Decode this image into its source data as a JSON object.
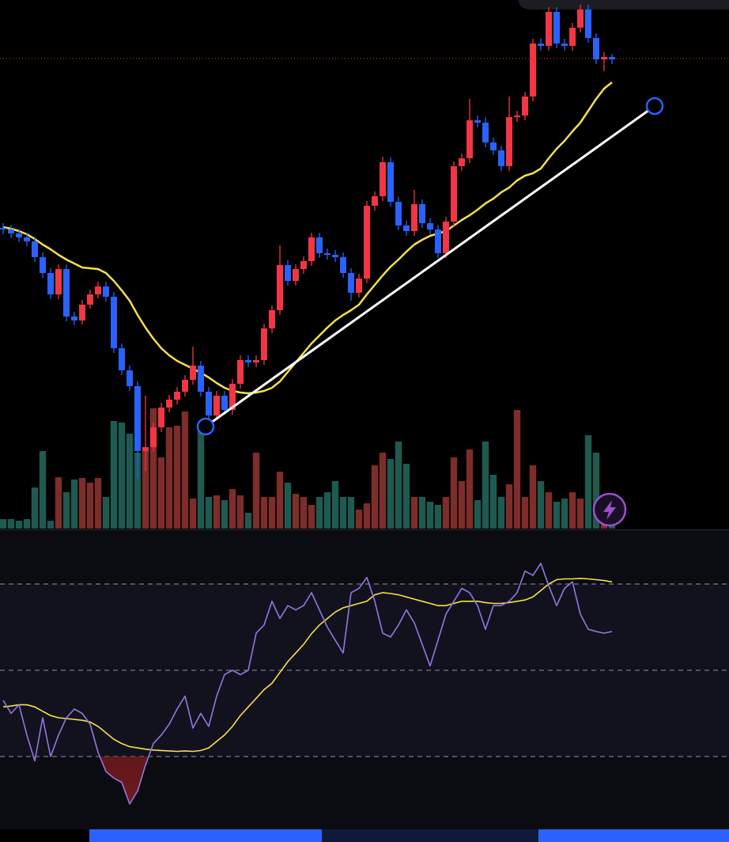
{
  "chart_data": {
    "type": "candlestick",
    "xlim": [
      -0.4,
      91.8
    ],
    "ylim": [
      0,
      700
    ],
    "up_color": "#f23645",
    "down_color": "#2962ff",
    "volume_up_color": "#7d2d2a",
    "volume_down_color": "#1e5a50",
    "open": [
      412,
      410,
      405,
      400,
      395,
      375,
      355,
      328,
      360,
      300,
      295,
      315,
      328,
      338,
      325,
      260,
      232,
      212,
      130,
      135,
      160,
      185,
      195,
      205,
      220,
      238,
      205,
      175,
      200,
      182,
      215,
      245,
      242,
      245,
      285,
      308,
      365,
      345,
      360,
      370,
      400,
      380,
      378,
      375,
      355,
      330,
      348,
      440,
      452,
      495,
      445,
      415,
      408,
      442,
      418,
      410,
      380,
      420,
      490,
      500,
      548,
      545,
      520,
      510,
      490,
      552,
      554,
      578,
      645,
      642,
      685,
      645,
      642,
      665,
      688,
      652,
      625,
      628
    ],
    "high": [
      418,
      416,
      411,
      406,
      401,
      381,
      361,
      366,
      366,
      306,
      321,
      334,
      344,
      344,
      331,
      266,
      238,
      218,
      200,
      166,
      191,
      201,
      211,
      226,
      262,
      244,
      211,
      206,
      206,
      221,
      251,
      251,
      251,
      291,
      314,
      390,
      371,
      366,
      376,
      406,
      406,
      386,
      384,
      381,
      361,
      354,
      446,
      458,
      502,
      501,
      451,
      421,
      460,
      448,
      424,
      416,
      426,
      496,
      506,
      575,
      554,
      552,
      526,
      516,
      578,
      560,
      584,
      651,
      652,
      691,
      691,
      651,
      671,
      694,
      694,
      658,
      634,
      632
    ],
    "low": [
      404,
      399,
      394,
      389,
      369,
      349,
      322,
      322,
      294,
      289,
      290,
      310,
      323,
      319,
      254,
      226,
      206,
      95,
      105,
      129,
      154,
      179,
      189,
      199,
      214,
      199,
      169,
      169,
      176,
      176,
      209,
      236,
      236,
      239,
      279,
      302,
      339,
      339,
      354,
      364,
      374,
      372,
      369,
      349,
      320,
      324,
      342,
      434,
      446,
      439,
      409,
      402,
      402,
      412,
      404,
      374,
      374,
      414,
      484,
      494,
      539,
      514,
      504,
      484,
      484,
      546,
      548,
      572,
      636,
      636,
      639,
      636,
      636,
      659,
      646,
      619,
      610,
      619
    ],
    "close": [
      410,
      405,
      400,
      395,
      375,
      355,
      328,
      360,
      300,
      295,
      315,
      328,
      338,
      325,
      260,
      232,
      212,
      130,
      135,
      160,
      185,
      195,
      205,
      220,
      238,
      205,
      175,
      200,
      182,
      215,
      245,
      242,
      245,
      285,
      308,
      365,
      345,
      360,
      370,
      400,
      380,
      378,
      375,
      355,
      330,
      348,
      440,
      452,
      495,
      445,
      415,
      408,
      442,
      418,
      410,
      380,
      420,
      490,
      500,
      548,
      545,
      520,
      510,
      490,
      552,
      554,
      578,
      645,
      642,
      685,
      645,
      642,
      665,
      688,
      652,
      625,
      628,
      625
    ],
    "moving_average": {
      "color": "#f5e04a",
      "values": [
        413,
        411,
        408,
        404,
        398,
        391,
        385,
        378,
        372,
        367,
        362,
        361,
        360,
        355,
        345,
        333,
        320,
        302,
        286,
        272,
        260,
        251,
        244,
        239,
        234,
        229,
        223,
        216,
        210,
        206,
        204,
        203,
        204,
        206,
        210,
        218,
        230,
        242,
        254,
        266,
        276,
        286,
        295,
        302,
        308,
        315,
        328,
        340,
        352,
        363,
        372,
        382,
        391,
        397,
        402,
        405,
        408,
        415,
        422,
        428,
        435,
        443,
        449,
        457,
        463,
        472,
        478,
        481,
        487,
        500,
        512,
        522,
        534,
        545,
        560,
        575,
        588,
        596
      ]
    },
    "last_price": 626,
    "trendline": {
      "x": [
        25.6,
        82.4
      ],
      "y": [
        161,
        566
      ],
      "color": "#ffffff"
    },
    "volume_ylim": [
      0,
      200
    ],
    "volume": [
      12,
      12,
      10,
      12,
      52,
      98,
      10,
      65,
      46,
      62,
      64,
      58,
      64,
      40,
      136,
      134,
      120,
      96,
      98,
      152,
      90,
      128,
      130,
      148,
      38,
      130,
      40,
      42,
      36,
      50,
      42,
      20,
      96,
      40,
      40,
      72,
      58,
      44,
      40,
      30,
      40,
      46,
      60,
      40,
      40,
      24,
      32,
      80,
      96,
      88,
      110,
      82,
      40,
      40,
      34,
      30,
      40,
      90,
      60,
      100,
      36,
      110,
      68,
      40,
      56,
      150,
      40,
      80,
      60,
      46,
      34,
      38,
      46,
      38,
      118,
      96,
      30,
      14
    ],
    "rsi": {
      "ylim": [
        0,
        100
      ],
      "levels": [
        30,
        50,
        70
      ],
      "color": "#9575e0",
      "ma_color": "#f5e04a",
      "values": [
        43,
        40,
        42,
        35,
        29,
        39,
        30,
        35,
        39,
        41,
        40,
        37.5,
        31,
        26.5,
        25,
        24,
        19,
        22,
        28,
        33,
        35,
        37.5,
        41,
        44,
        36.6,
        40,
        37,
        44,
        49,
        50,
        49,
        50,
        58.6,
        60.5,
        66,
        62,
        65,
        64,
        65,
        68,
        64,
        60,
        57,
        54,
        68,
        69,
        71.5,
        66,
        58.6,
        57.7,
        60.5,
        64,
        61,
        56,
        51,
        57,
        63,
        66,
        69,
        68,
        65,
        59.5,
        65,
        65,
        66,
        68,
        73,
        72,
        74.8,
        69.6,
        65,
        69,
        70.5,
        63,
        59.5,
        59,
        58.6,
        59
      ],
      "ma_values": [
        41.5,
        41.7,
        42,
        42,
        41.5,
        40.5,
        39.5,
        39,
        38.8,
        38.6,
        38.4,
        38,
        37,
        35.5,
        34,
        33,
        32.3,
        32,
        31.7,
        31.5,
        31.4,
        31.3,
        31.2,
        31.3,
        31.2,
        31.4,
        32,
        33.5,
        35,
        37,
        39.5,
        41.5,
        43.5,
        45.5,
        47,
        49.5,
        52,
        54,
        56,
        58.5,
        60.5,
        62,
        63.5,
        64.5,
        65,
        65.5,
        66,
        67.5,
        68,
        67.8,
        67.5,
        67,
        66.5,
        66,
        65.5,
        65,
        65,
        65.5,
        66,
        66,
        66,
        65.7,
        65.5,
        65.5,
        65.7,
        66,
        66.3,
        67,
        68.5,
        70,
        71,
        71.2,
        71.2,
        71.3,
        71.2,
        71,
        70.8,
        70.5
      ]
    }
  }
}
